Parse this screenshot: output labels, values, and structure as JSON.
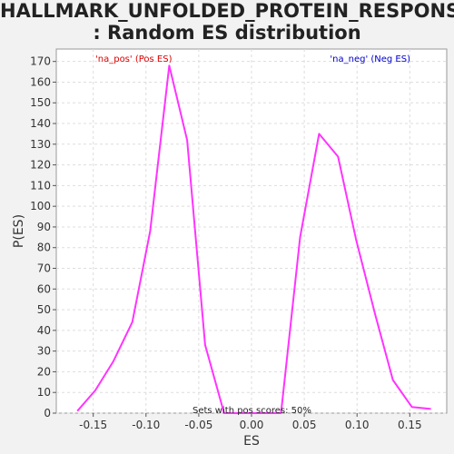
{
  "title_line1": "HALLMARK_UNFOLDED_PROTEIN_RESPONSE",
  "title_line2": ": Random ES distribution",
  "chart_data": {
    "type": "line",
    "xlabel": "ES",
    "ylabel": "P(ES)",
    "xlim": [
      -0.185,
      0.185
    ],
    "ylim": [
      0,
      176
    ],
    "xticks": [
      -0.15,
      -0.1,
      -0.05,
      0.0,
      0.05,
      0.1,
      0.15
    ],
    "xtick_labels": [
      "-0.15",
      "-0.10",
      "-0.05",
      "0.00",
      "0.05",
      "0.10",
      "0.15"
    ],
    "yticks": [
      0,
      10,
      20,
      30,
      40,
      50,
      60,
      70,
      80,
      90,
      100,
      110,
      120,
      130,
      140,
      150,
      160,
      170
    ],
    "ytick_labels": [
      "0",
      "10",
      "20",
      "30",
      "40",
      "50",
      "60",
      "70",
      "80",
      "90",
      "100",
      "110",
      "120",
      "130",
      "140",
      "150",
      "160",
      "170"
    ],
    "grid": true,
    "line_color": "#ff33ff",
    "series": [
      {
        "x": [
          -0.165,
          -0.148,
          -0.131,
          -0.113,
          -0.096,
          -0.078,
          -0.061,
          -0.044,
          -0.026,
          -0.008,
          0.01,
          0.028,
          0.046,
          0.064,
          0.082,
          0.099,
          0.117,
          0.134,
          0.152,
          0.17
        ],
        "y": [
          1,
          11,
          25,
          44,
          88,
          168,
          132,
          33,
          0,
          0,
          0,
          0,
          85,
          135,
          124,
          84,
          48,
          16,
          3,
          2
        ]
      }
    ],
    "legend": [
      {
        "text": "'na_pos' (Pos ES)",
        "color": "#dd0000",
        "position": "top-left"
      },
      {
        "text": "'na_neg' (Neg ES)",
        "color": "#0000cc",
        "position": "top-right"
      }
    ],
    "annotation": "Sets with pos scores: 50%"
  }
}
